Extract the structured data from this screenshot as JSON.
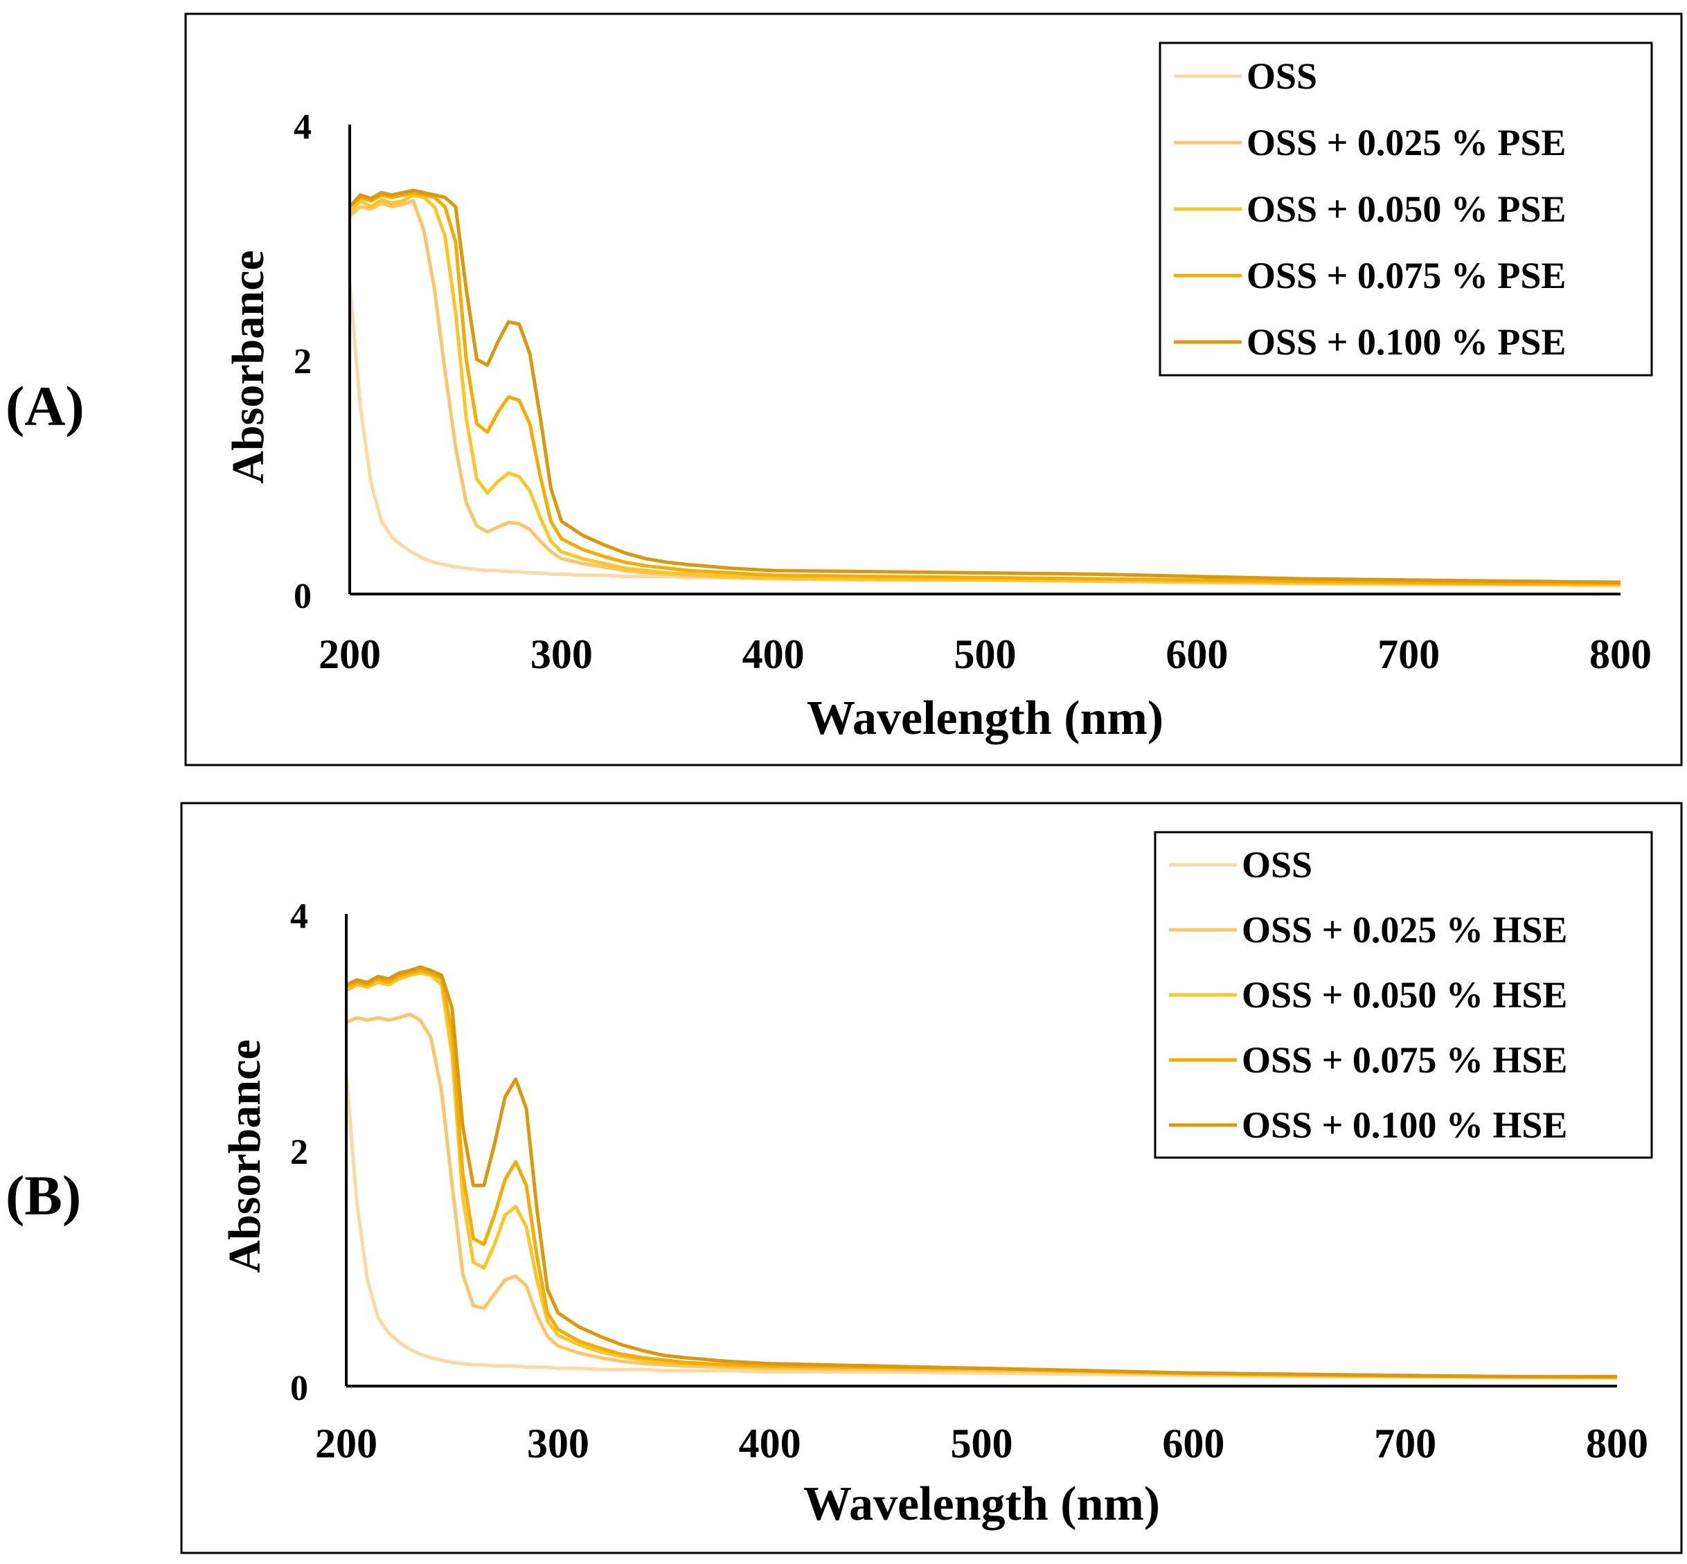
{
  "panels": [
    {
      "label": "(A)",
      "chart_data": {
        "type": "line",
        "title": "",
        "xlabel": "Wavelength (nm)",
        "ylabel": "Absorbance",
        "xlim": [
          200,
          800
        ],
        "ylim": [
          0,
          4
        ],
        "xticks": [
          "200",
          "300",
          "400",
          "500",
          "600",
          "700",
          "800"
        ],
        "yticks": [
          "0",
          "2",
          "4"
        ],
        "legend_position": "top-right",
        "x": [
          200,
          205,
          210,
          215,
          220,
          225,
          230,
          235,
          240,
          245,
          250,
          255,
          260,
          265,
          270,
          275,
          280,
          285,
          290,
          295,
          300,
          310,
          320,
          330,
          340,
          350,
          360,
          380,
          400,
          450,
          500,
          550,
          600,
          650,
          700,
          750,
          800
        ],
        "series": [
          {
            "name": "OSS",
            "color": "#fcd9a4",
            "values": [
              2.65,
              1.6,
              0.95,
              0.62,
              0.48,
              0.41,
              0.35,
              0.3,
              0.27,
              0.25,
              0.23,
              0.22,
              0.21,
              0.2,
              0.2,
              0.19,
              0.19,
              0.18,
              0.18,
              0.17,
              0.17,
              0.16,
              0.16,
              0.15,
              0.15,
              0.15,
              0.14,
              0.14,
              0.13,
              0.12,
              0.12,
              0.11,
              0.1,
              0.09,
              0.08,
              0.08,
              0.07
            ]
          },
          {
            "name": "OSS + 0.025 % PSE",
            "color": "#fbc56e",
            "values": [
              3.22,
              3.3,
              3.28,
              3.33,
              3.3,
              3.32,
              3.35,
              3.1,
              2.6,
              1.9,
              1.25,
              0.78,
              0.58,
              0.53,
              0.57,
              0.61,
              0.6,
              0.55,
              0.45,
              0.36,
              0.3,
              0.26,
              0.23,
              0.2,
              0.18,
              0.17,
              0.16,
              0.14,
              0.13,
              0.12,
              0.12,
              0.11,
              0.1,
              0.09,
              0.09,
              0.08,
              0.08
            ]
          },
          {
            "name": "OSS + 0.050 % PSE",
            "color": "#fbc62a",
            "values": [
              3.25,
              3.35,
              3.3,
              3.36,
              3.33,
              3.35,
              3.4,
              3.38,
              3.3,
              3.05,
              2.4,
              1.5,
              0.98,
              0.86,
              0.96,
              1.03,
              1.0,
              0.88,
              0.65,
              0.45,
              0.36,
              0.3,
              0.26,
              0.22,
              0.2,
              0.18,
              0.17,
              0.15,
              0.14,
              0.13,
              0.12,
              0.12,
              0.11,
              0.1,
              0.09,
              0.09,
              0.08
            ]
          },
          {
            "name": "OSS + 0.075 % PSE",
            "color": "#f2ac05",
            "values": [
              3.3,
              3.38,
              3.35,
              3.4,
              3.38,
              3.4,
              3.42,
              3.4,
              3.38,
              3.3,
              3.0,
              2.0,
              1.45,
              1.38,
              1.55,
              1.68,
              1.65,
              1.45,
              1.0,
              0.62,
              0.47,
              0.38,
              0.32,
              0.27,
              0.24,
              0.22,
              0.2,
              0.18,
              0.16,
              0.15,
              0.14,
              0.13,
              0.12,
              0.11,
              0.1,
              0.09,
              0.09
            ]
          },
          {
            "name": "OSS + 0.100 % PSE",
            "color": "#d9980d",
            "values": [
              3.3,
              3.4,
              3.37,
              3.42,
              3.4,
              3.42,
              3.44,
              3.42,
              3.4,
              3.38,
              3.3,
              2.6,
              2.0,
              1.95,
              2.15,
              2.32,
              2.3,
              2.05,
              1.5,
              0.9,
              0.62,
              0.5,
              0.42,
              0.35,
              0.3,
              0.27,
              0.25,
              0.22,
              0.2,
              0.19,
              0.18,
              0.17,
              0.15,
              0.13,
              0.12,
              0.11,
              0.1
            ]
          }
        ]
      }
    },
    {
      "label": "(B)",
      "chart_data": {
        "type": "line",
        "title": "",
        "xlabel": "Wavelength (nm)",
        "ylabel": "Absorbance",
        "xlim": [
          200,
          800
        ],
        "ylim": [
          0,
          4
        ],
        "xticks": [
          "200",
          "300",
          "400",
          "500",
          "600",
          "700",
          "800"
        ],
        "yticks": [
          "0",
          "2",
          "4"
        ],
        "legend_position": "top-right",
        "x": [
          200,
          205,
          210,
          215,
          220,
          225,
          230,
          235,
          240,
          245,
          250,
          255,
          260,
          265,
          270,
          275,
          280,
          285,
          290,
          295,
          300,
          310,
          320,
          330,
          340,
          350,
          360,
          380,
          400,
          450,
          500,
          550,
          600,
          650,
          700,
          750,
          800
        ],
        "series": [
          {
            "name": "OSS",
            "color": "#fcd9a4",
            "values": [
              2.65,
              1.55,
              0.9,
              0.58,
              0.45,
              0.37,
              0.31,
              0.27,
              0.24,
              0.22,
              0.2,
              0.19,
              0.18,
              0.18,
              0.17,
              0.17,
              0.17,
              0.16,
              0.16,
              0.16,
              0.15,
              0.15,
              0.14,
              0.14,
              0.14,
              0.13,
              0.13,
              0.13,
              0.12,
              0.12,
              0.11,
              0.1,
              0.09,
              0.08,
              0.08,
              0.07,
              0.07
            ]
          },
          {
            "name": "OSS + 0.025 % HSE",
            "color": "#fbc56e",
            "values": [
              3.08,
              3.12,
              3.1,
              3.12,
              3.1,
              3.12,
              3.15,
              3.1,
              2.95,
              2.5,
              1.7,
              0.95,
              0.68,
              0.66,
              0.78,
              0.9,
              0.93,
              0.85,
              0.6,
              0.42,
              0.34,
              0.28,
              0.24,
              0.21,
              0.19,
              0.18,
              0.17,
              0.16,
              0.15,
              0.14,
              0.13,
              0.12,
              0.1,
              0.09,
              0.08,
              0.08,
              0.07
            ]
          },
          {
            "name": "OSS + 0.050 % HSE",
            "color": "#fbc62a",
            "values": [
              3.35,
              3.4,
              3.38,
              3.42,
              3.4,
              3.45,
              3.48,
              3.5,
              3.48,
              3.4,
              2.8,
              1.6,
              1.05,
              1.0,
              1.2,
              1.45,
              1.52,
              1.35,
              0.9,
              0.55,
              0.43,
              0.35,
              0.29,
              0.25,
              0.22,
              0.2,
              0.19,
              0.17,
              0.16,
              0.15,
              0.14,
              0.12,
              0.1,
              0.09,
              0.08,
              0.08,
              0.07
            ]
          },
          {
            "name": "OSS + 0.075 % HSE",
            "color": "#f2ac05",
            "values": [
              3.38,
              3.42,
              3.4,
              3.45,
              3.42,
              3.48,
              3.5,
              3.52,
              3.5,
              3.45,
              3.0,
              1.8,
              1.25,
              1.2,
              1.45,
              1.75,
              1.9,
              1.7,
              1.1,
              0.62,
              0.48,
              0.38,
              0.32,
              0.27,
              0.24,
              0.22,
              0.2,
              0.18,
              0.17,
              0.16,
              0.15,
              0.13,
              0.11,
              0.1,
              0.09,
              0.08,
              0.08
            ]
          },
          {
            "name": "OSS + 0.100 % HSE",
            "color": "#d9980d",
            "values": [
              3.4,
              3.44,
              3.42,
              3.47,
              3.45,
              3.5,
              3.52,
              3.55,
              3.52,
              3.48,
              3.2,
              2.2,
              1.7,
              1.7,
              2.05,
              2.45,
              2.6,
              2.35,
              1.5,
              0.82,
              0.62,
              0.5,
              0.42,
              0.35,
              0.3,
              0.26,
              0.24,
              0.21,
              0.19,
              0.17,
              0.15,
              0.13,
              0.11,
              0.1,
              0.09,
              0.08,
              0.08
            ]
          }
        ]
      }
    }
  ]
}
